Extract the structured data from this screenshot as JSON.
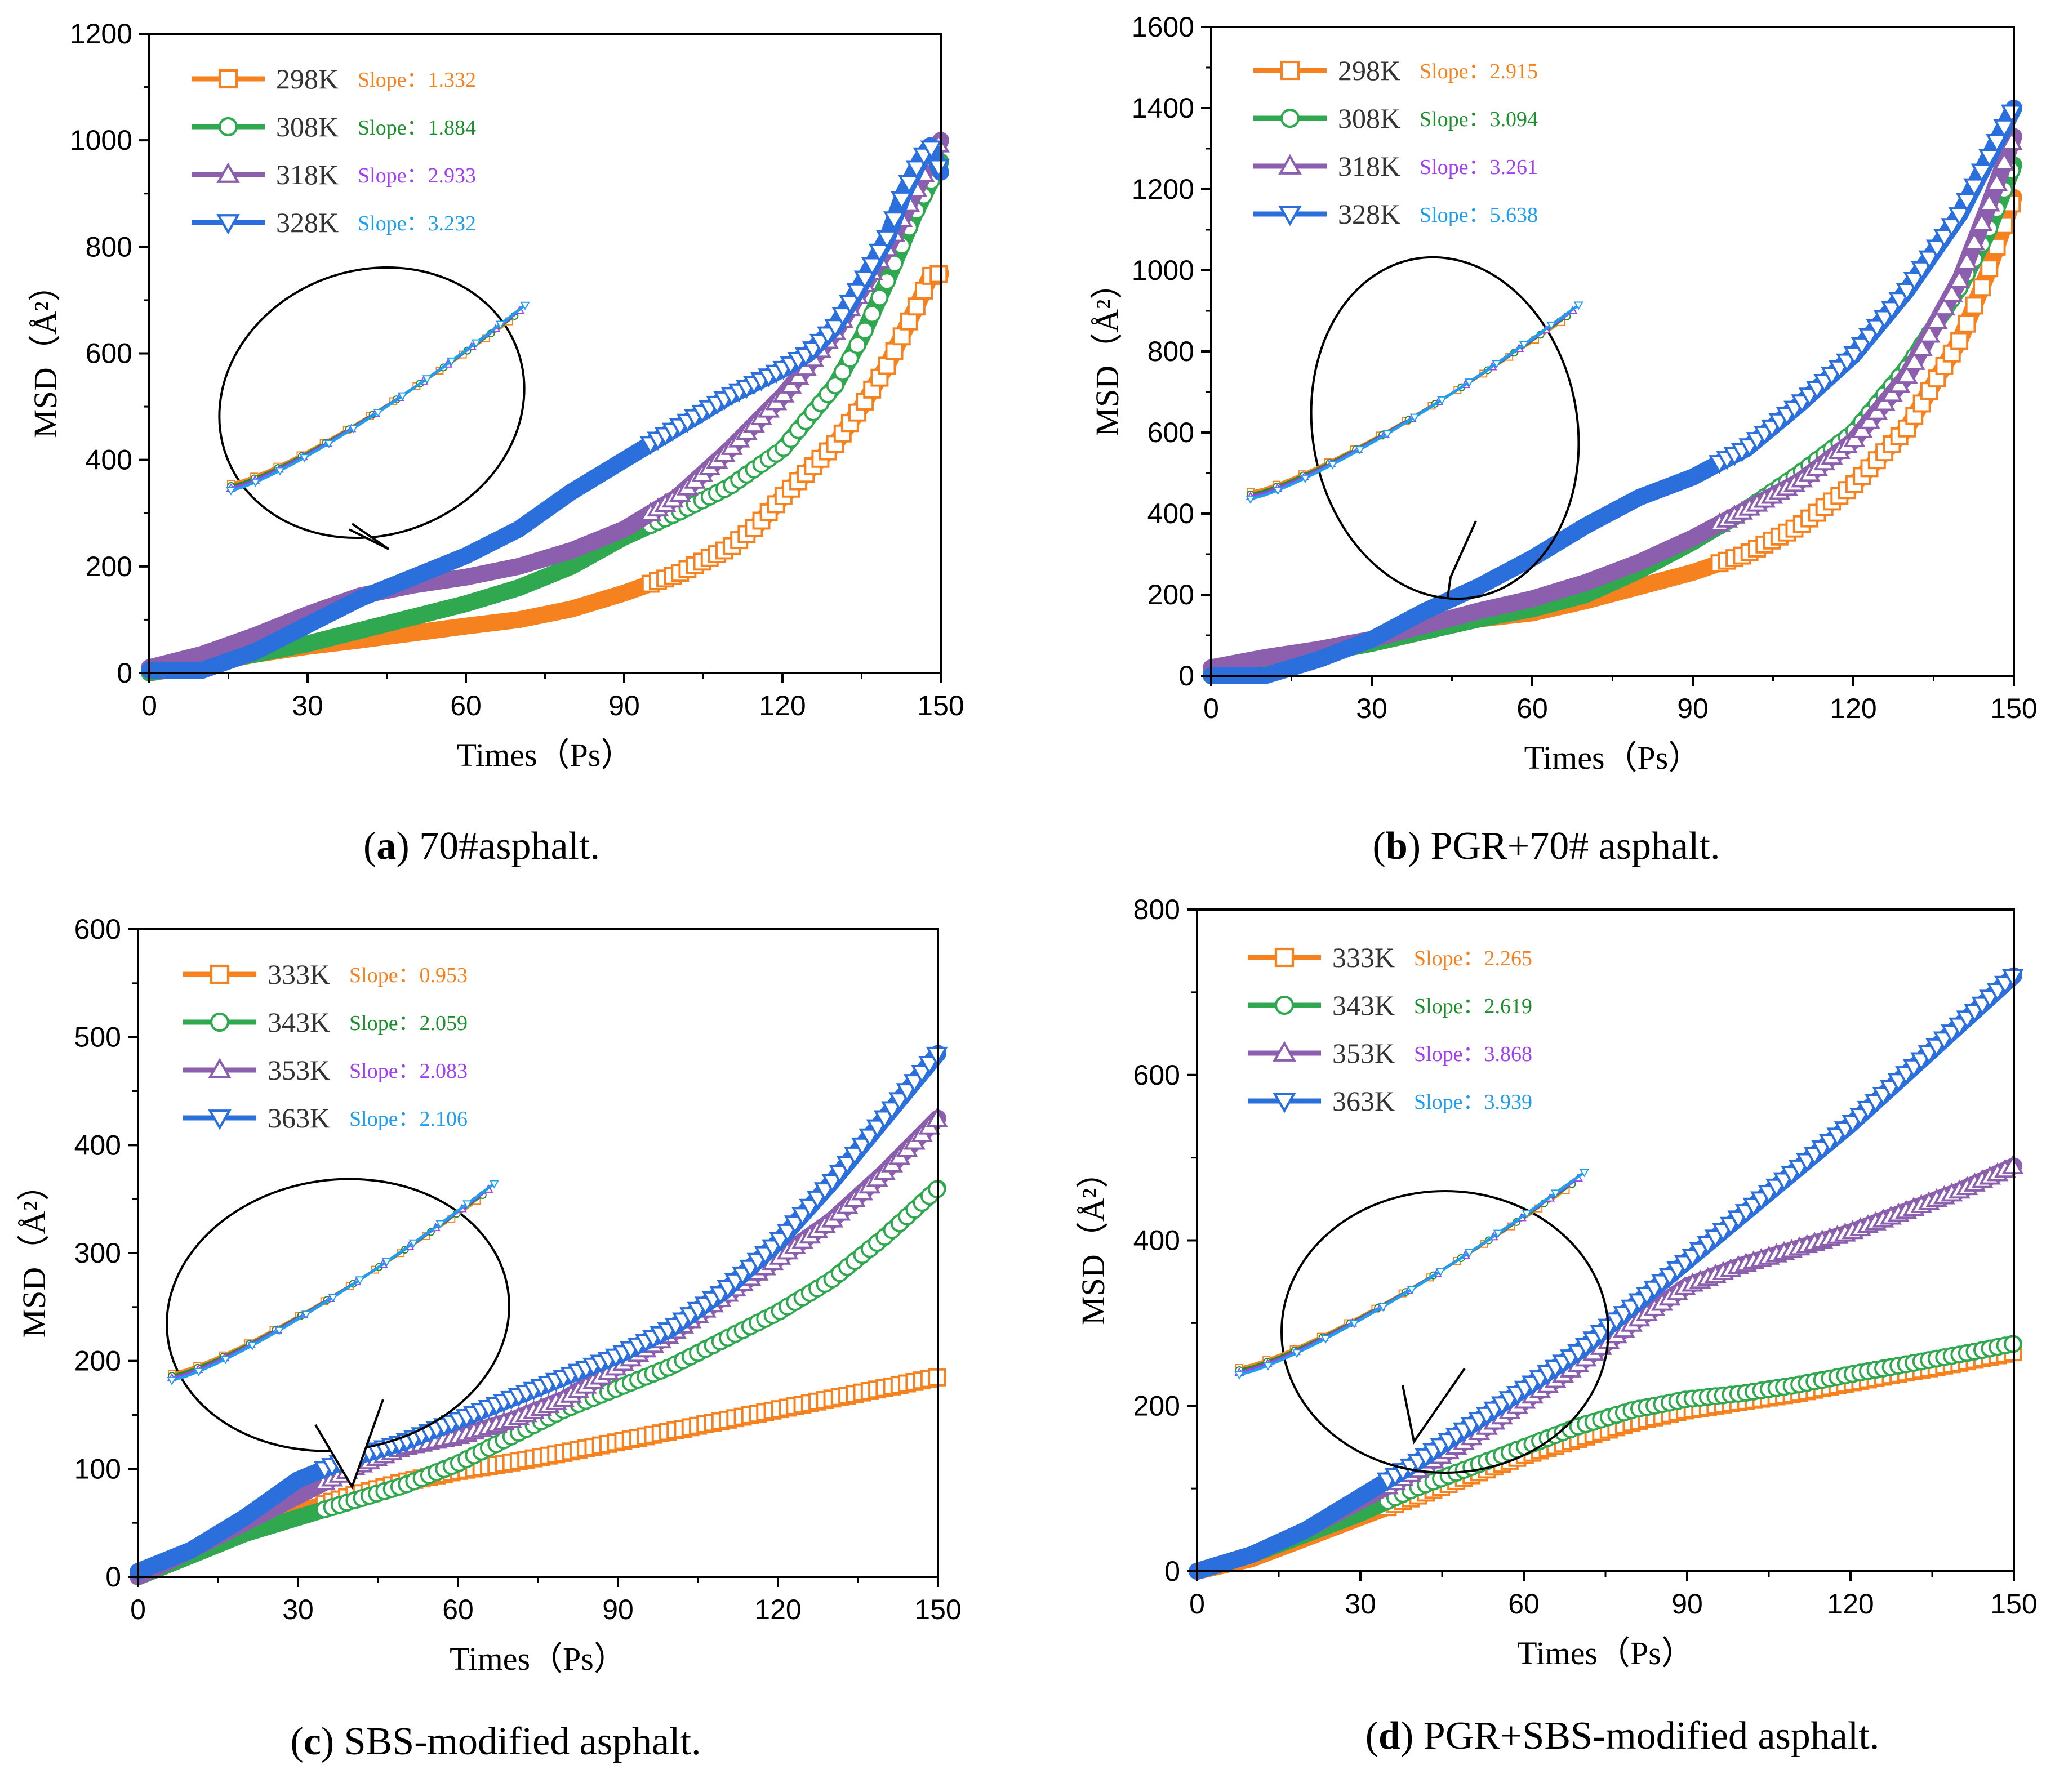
{
  "colors": {
    "series": [
      "#F5821F",
      "#2FA84F",
      "#8B5FAE",
      "#2A6FDB"
    ],
    "slope_text": [
      "#F5821F",
      "#1E8F2E",
      "#A040F0",
      "#1E9EEB"
    ]
  },
  "chart_data": [
    {
      "type": "line",
      "panel": "a",
      "caption": {
        "letter": "a",
        "text": "70#asphalt."
      },
      "xlabel": "Times（Ps）",
      "ylabel": "MSD（Å²）",
      "xlim": [
        0,
        150
      ],
      "ylim": [
        0,
        1200
      ],
      "xticks": [
        "0",
        "30",
        "60",
        "90",
        "120",
        "150"
      ],
      "yticks": [
        "0",
        "200",
        "400",
        "600",
        "800",
        "1000",
        "1200"
      ],
      "legend_position": "top-left",
      "series": [
        {
          "name": "298K",
          "slope_label": "Slope：",
          "slope_value": "1.332",
          "marker": "square",
          "x": [
            0,
            10,
            20,
            30,
            40,
            50,
            60,
            70,
            80,
            90,
            100,
            110,
            115,
            120,
            125,
            130,
            135,
            140,
            143,
            146,
            148,
            150
          ],
          "y": [
            0,
            15,
            35,
            50,
            62,
            75,
            88,
            100,
            120,
            150,
            185,
            235,
            275,
            330,
            380,
            430,
            500,
            580,
            640,
            700,
            745,
            750
          ]
        },
        {
          "name": "308K",
          "slope_label": "Slope：",
          "slope_value": "1.884",
          "marker": "circle",
          "x": [
            0,
            10,
            20,
            30,
            40,
            50,
            60,
            70,
            80,
            90,
            100,
            110,
            120,
            130,
            135,
            140,
            145,
            150
          ],
          "y": [
            0,
            20,
            35,
            55,
            80,
            105,
            130,
            160,
            200,
            255,
            300,
            350,
            420,
            540,
            630,
            740,
            860,
            960
          ]
        },
        {
          "name": "318K",
          "slope_label": "Slope：",
          "slope_value": "2.933",
          "marker": "triangle-up",
          "x": [
            0,
            10,
            20,
            30,
            40,
            50,
            60,
            70,
            80,
            90,
            100,
            110,
            120,
            130,
            140,
            146,
            150
          ],
          "y": [
            10,
            35,
            70,
            110,
            145,
            165,
            180,
            200,
            230,
            270,
            330,
            420,
            520,
            640,
            800,
            920,
            1000
          ]
        },
        {
          "name": "328K",
          "slope_label": "Slope：",
          "slope_value": "3.232",
          "marker": "triangle-down",
          "x": [
            0,
            10,
            20,
            30,
            40,
            50,
            60,
            70,
            80,
            90,
            100,
            110,
            120,
            125,
            130,
            135,
            140,
            143,
            146,
            148,
            150
          ],
          "y": [
            5,
            5,
            40,
            90,
            140,
            180,
            220,
            270,
            340,
            400,
            460,
            520,
            570,
            600,
            650,
            730,
            820,
            900,
            960,
            990,
            940
          ]
        }
      ]
    },
    {
      "type": "line",
      "panel": "b",
      "caption": {
        "letter": "b",
        "text": "PGR+70# asphalt."
      },
      "xlabel": "Times（Ps）",
      "ylabel": "MSD（Å²）",
      "xlim": [
        0,
        150
      ],
      "ylim": [
        0,
        1600
      ],
      "xticks": [
        "0",
        "30",
        "60",
        "90",
        "120",
        "150"
      ],
      "yticks": [
        "0",
        "200",
        "400",
        "600",
        "800",
        "1000",
        "1200",
        "1400",
        "1600"
      ],
      "legend_position": "top-left",
      "series": [
        {
          "name": "298K",
          "slope_label": "Slope：",
          "slope_value": "2.915",
          "marker": "square",
          "x": [
            0,
            10,
            20,
            30,
            40,
            50,
            60,
            70,
            80,
            90,
            100,
            110,
            120,
            130,
            140,
            145,
            150
          ],
          "y": [
            10,
            30,
            55,
            80,
            110,
            140,
            155,
            185,
            220,
            255,
            300,
            370,
            470,
            610,
            830,
            990,
            1180
          ]
        },
        {
          "name": "308K",
          "slope_label": "Slope：",
          "slope_value": "3.094",
          "marker": "circle",
          "x": [
            0,
            10,
            20,
            30,
            40,
            50,
            60,
            70,
            80,
            90,
            100,
            110,
            120,
            130,
            140,
            145,
            150
          ],
          "y": [
            10,
            30,
            55,
            80,
            110,
            140,
            165,
            200,
            260,
            330,
            410,
            500,
            600,
            760,
            960,
            1090,
            1260
          ]
        },
        {
          "name": "318K",
          "slope_label": "Slope：",
          "slope_value": "3.261",
          "marker": "triangle-up",
          "x": [
            0,
            10,
            20,
            30,
            40,
            50,
            60,
            70,
            80,
            90,
            100,
            110,
            120,
            130,
            140,
            145,
            150
          ],
          "y": [
            20,
            45,
            65,
            90,
            125,
            160,
            190,
            230,
            280,
            340,
            410,
            480,
            580,
            740,
            980,
            1150,
            1330
          ]
        },
        {
          "name": "328K",
          "slope_label": "Slope：",
          "slope_value": "5.638",
          "marker": "triangle-down",
          "x": [
            0,
            10,
            20,
            30,
            40,
            50,
            60,
            70,
            80,
            90,
            100,
            110,
            120,
            130,
            140,
            145,
            150
          ],
          "y": [
            0,
            0,
            40,
            90,
            160,
            220,
            290,
            370,
            440,
            490,
            560,
            670,
            790,
            950,
            1140,
            1270,
            1400
          ]
        }
      ]
    },
    {
      "type": "line",
      "panel": "c",
      "caption": {
        "letter": "c",
        "text": "SBS-modified asphalt."
      },
      "xlabel": "Times（Ps）",
      "ylabel": "MSD（Å²）",
      "xlim": [
        0,
        150
      ],
      "ylim": [
        0,
        600
      ],
      "xticks": [
        "0",
        "30",
        "60",
        "90",
        "120",
        "150"
      ],
      "yticks": [
        "0",
        "100",
        "200",
        "300",
        "400",
        "500",
        "600"
      ],
      "legend_position": "top-left",
      "series": [
        {
          "name": "333K",
          "slope_label": "Slope：",
          "slope_value": "0.953",
          "marker": "square",
          "x": [
            0,
            10,
            20,
            30,
            40,
            50,
            60,
            70,
            80,
            90,
            100,
            110,
            120,
            130,
            140,
            150
          ],
          "y": [
            0,
            20,
            40,
            60,
            75,
            88,
            98,
            106,
            115,
            125,
            135,
            145,
            155,
            165,
            175,
            185
          ]
        },
        {
          "name": "343K",
          "slope_label": "Slope：",
          "slope_value": "2.059",
          "marker": "circle",
          "x": [
            0,
            10,
            20,
            30,
            40,
            50,
            60,
            70,
            80,
            90,
            100,
            110,
            120,
            130,
            140,
            150
          ],
          "y": [
            0,
            20,
            40,
            55,
            70,
            85,
            105,
            130,
            155,
            175,
            195,
            220,
            245,
            275,
            315,
            360
          ]
        },
        {
          "name": "353K",
          "slope_label": "Slope：",
          "slope_value": "2.083",
          "marker": "triangle-up",
          "x": [
            0,
            10,
            20,
            30,
            40,
            50,
            60,
            70,
            80,
            90,
            100,
            110,
            120,
            130,
            140,
            150
          ],
          "y": [
            0,
            25,
            50,
            75,
            100,
            120,
            130,
            145,
            165,
            195,
            225,
            260,
            295,
            330,
            375,
            425
          ]
        },
        {
          "name": "363K",
          "slope_label": "Slope：",
          "slope_value": "2.106",
          "marker": "triangle-down",
          "x": [
            0,
            10,
            20,
            30,
            40,
            50,
            60,
            70,
            80,
            90,
            100,
            110,
            120,
            130,
            140,
            150
          ],
          "y": [
            5,
            25,
            55,
            90,
            110,
            125,
            145,
            165,
            185,
            205,
            230,
            265,
            310,
            365,
            425,
            485
          ]
        }
      ]
    },
    {
      "type": "line",
      "panel": "d",
      "caption": {
        "letter": "d",
        "text": "PGR+SBS-modified asphalt."
      },
      "xlabel": "Times（Ps）",
      "ylabel": "MSD（Å²）",
      "xlim": [
        0,
        150
      ],
      "ylim": [
        0,
        800
      ],
      "xticks": [
        "0",
        "30",
        "60",
        "90",
        "120",
        "150"
      ],
      "yticks": [
        "0",
        "200",
        "400",
        "600",
        "800"
      ],
      "legend_position": "top-left",
      "series": [
        {
          "name": "333K",
          "slope_label": "Slope：",
          "slope_value": "2.265",
          "marker": "square",
          "x": [
            0,
            10,
            20,
            30,
            40,
            50,
            60,
            70,
            80,
            90,
            100,
            110,
            120,
            130,
            140,
            150
          ],
          "y": [
            0,
            15,
            40,
            65,
            90,
            115,
            140,
            160,
            180,
            195,
            205,
            215,
            228,
            240,
            252,
            265
          ]
        },
        {
          "name": "343K",
          "slope_label": "Slope：",
          "slope_value": "2.619",
          "marker": "circle",
          "x": [
            0,
            10,
            20,
            30,
            40,
            50,
            60,
            70,
            80,
            90,
            100,
            110,
            120,
            130,
            140,
            150
          ],
          "y": [
            0,
            20,
            45,
            70,
            100,
            125,
            150,
            175,
            195,
            208,
            215,
            225,
            238,
            250,
            262,
            275
          ]
        },
        {
          "name": "353K",
          "slope_label": "Slope：",
          "slope_value": "3.868",
          "marker": "triangle-up",
          "x": [
            0,
            10,
            20,
            30,
            40,
            50,
            60,
            70,
            80,
            90,
            100,
            110,
            120,
            130,
            140,
            150
          ],
          "y": [
            0,
            20,
            50,
            85,
            120,
            160,
            205,
            250,
            300,
            345,
            370,
            390,
            410,
            435,
            460,
            490
          ]
        },
        {
          "name": "363K",
          "slope_label": "Slope：",
          "slope_value": "3.939",
          "marker": "triangle-down",
          "x": [
            0,
            10,
            20,
            30,
            40,
            50,
            60,
            70,
            80,
            90,
            100,
            110,
            120,
            130,
            140,
            150
          ],
          "y": [
            0,
            20,
            50,
            90,
            130,
            175,
            220,
            265,
            320,
            375,
            430,
            485,
            540,
            600,
            660,
            720
          ]
        }
      ]
    }
  ]
}
